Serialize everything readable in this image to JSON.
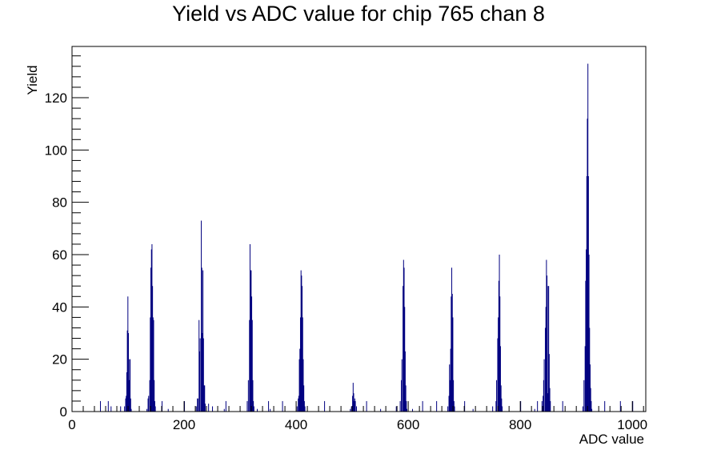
{
  "chart_data": {
    "type": "bar",
    "title": "Yield vs ADC value for chip 765 chan 8",
    "xlabel": "ADC value",
    "ylabel": "Yield",
    "xlim": [
      0,
      1024
    ],
    "ylim": [
      0,
      139.6
    ],
    "x_ticks": [
      "0",
      "200",
      "400",
      "600",
      "800",
      "1000"
    ],
    "y_ticks": [
      "0",
      "20",
      "40",
      "60",
      "80",
      "100",
      "120"
    ],
    "series_color": "#000080",
    "histogram": [
      [
        50,
        4
      ],
      [
        64,
        4
      ],
      [
        69,
        2
      ],
      [
        86,
        2
      ],
      [
        93,
        2
      ],
      [
        95,
        5
      ],
      [
        96,
        6
      ],
      [
        97,
        15
      ],
      [
        98,
        31
      ],
      [
        99,
        44
      ],
      [
        100,
        30
      ],
      [
        101,
        12
      ],
      [
        102,
        20
      ],
      [
        103,
        20
      ],
      [
        104,
        5
      ],
      [
        105,
        1
      ],
      [
        133,
        1
      ],
      [
        135,
        5
      ],
      [
        136,
        6
      ],
      [
        138,
        12
      ],
      [
        139,
        36
      ],
      [
        140,
        55
      ],
      [
        141,
        62
      ],
      [
        142,
        64
      ],
      [
        143,
        48
      ],
      [
        144,
        36
      ],
      [
        145,
        35
      ],
      [
        146,
        12
      ],
      [
        147,
        4
      ],
      [
        148,
        2
      ],
      [
        160,
        4
      ],
      [
        171,
        1
      ],
      [
        200,
        4
      ],
      [
        221,
        2
      ],
      [
        223,
        5
      ],
      [
        224,
        5
      ],
      [
        226,
        35
      ],
      [
        227,
        23
      ],
      [
        228,
        28
      ],
      [
        230,
        73
      ],
      [
        231,
        55
      ],
      [
        232,
        30
      ],
      [
        233,
        54
      ],
      [
        234,
        28
      ],
      [
        235,
        10
      ],
      [
        236,
        10
      ],
      [
        237,
        3
      ],
      [
        243,
        3
      ],
      [
        250,
        2
      ],
      [
        271,
        1
      ],
      [
        274,
        4
      ],
      [
        312,
        4
      ],
      [
        314,
        12
      ],
      [
        316,
        35
      ],
      [
        317,
        64
      ],
      [
        318,
        54
      ],
      [
        319,
        54
      ],
      [
        320,
        44
      ],
      [
        321,
        35
      ],
      [
        322,
        12
      ],
      [
        323,
        4
      ],
      [
        324,
        2
      ],
      [
        330,
        1
      ],
      [
        350,
        4
      ],
      [
        353,
        1
      ],
      [
        375,
        4
      ],
      [
        401,
        2
      ],
      [
        403,
        5
      ],
      [
        404,
        6
      ],
      [
        405,
        20
      ],
      [
        406,
        24
      ],
      [
        407,
        36
      ],
      [
        408,
        54
      ],
      [
        409,
        52
      ],
      [
        410,
        48
      ],
      [
        411,
        36
      ],
      [
        412,
        20
      ],
      [
        413,
        10
      ],
      [
        414,
        4
      ],
      [
        415,
        2
      ],
      [
        450,
        4
      ],
      [
        496,
        1
      ],
      [
        498,
        2
      ],
      [
        500,
        6
      ],
      [
        501,
        11
      ],
      [
        502,
        7
      ],
      [
        503,
        4
      ],
      [
        504,
        5
      ],
      [
        505,
        4
      ],
      [
        507,
        2
      ],
      [
        525,
        4
      ],
      [
        550,
        1
      ],
      [
        578,
        2
      ],
      [
        585,
        4
      ],
      [
        587,
        12
      ],
      [
        588,
        20
      ],
      [
        590,
        48
      ],
      [
        591,
        58
      ],
      [
        592,
        55
      ],
      [
        593,
        40
      ],
      [
        594,
        23
      ],
      [
        595,
        10
      ],
      [
        596,
        4
      ],
      [
        597,
        1
      ],
      [
        607,
        1
      ],
      [
        625,
        4
      ],
      [
        650,
        4
      ],
      [
        670,
        2
      ],
      [
        672,
        6
      ],
      [
        673,
        18
      ],
      [
        674,
        12
      ],
      [
        675,
        24
      ],
      [
        676,
        44
      ],
      [
        677,
        55
      ],
      [
        678,
        45
      ],
      [
        679,
        36
      ],
      [
        680,
        12
      ],
      [
        681,
        4
      ],
      [
        682,
        2
      ],
      [
        700,
        4
      ],
      [
        715,
        1
      ],
      [
        750,
        2
      ],
      [
        756,
        4
      ],
      [
        757,
        12
      ],
      [
        759,
        28
      ],
      [
        760,
        36
      ],
      [
        761,
        50
      ],
      [
        762,
        60
      ],
      [
        763,
        44
      ],
      [
        764,
        25
      ],
      [
        765,
        10
      ],
      [
        766,
        5
      ],
      [
        767,
        2
      ],
      [
        800,
        4
      ],
      [
        825,
        1
      ],
      [
        830,
        4
      ],
      [
        838,
        4
      ],
      [
        840,
        6
      ],
      [
        841,
        12
      ],
      [
        842,
        20
      ],
      [
        844,
        32
      ],
      [
        845,
        40
      ],
      [
        846,
        58
      ],
      [
        847,
        52
      ],
      [
        848,
        7
      ],
      [
        849,
        48
      ],
      [
        850,
        48
      ],
      [
        851,
        22
      ],
      [
        852,
        9
      ],
      [
        853,
        4
      ],
      [
        875,
        4
      ],
      [
        911,
        2
      ],
      [
        913,
        12
      ],
      [
        915,
        25
      ],
      [
        916,
        50
      ],
      [
        917,
        62
      ],
      [
        918,
        90
      ],
      [
        919,
        112
      ],
      [
        920,
        133
      ],
      [
        921,
        90
      ],
      [
        922,
        60
      ],
      [
        923,
        32
      ],
      [
        924,
        18
      ],
      [
        925,
        9
      ],
      [
        926,
        4
      ],
      [
        927,
        1
      ],
      [
        950,
        4
      ],
      [
        978,
        4
      ],
      [
        1000,
        4
      ]
    ]
  }
}
